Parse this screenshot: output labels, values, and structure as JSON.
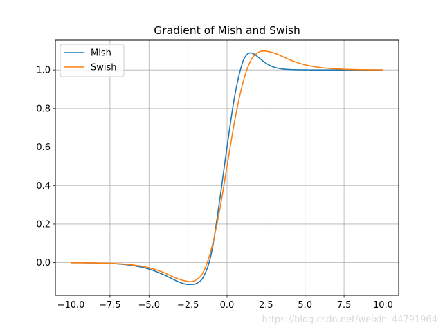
{
  "chart_data": {
    "type": "line",
    "title": "Gradient of Mish and Swish",
    "xlabel": "",
    "ylabel": "",
    "xlim": [
      -11.0,
      11.0
    ],
    "ylim": [
      -0.17,
      1.155
    ],
    "x_ticks": [
      -10.0,
      -7.5,
      -5.0,
      -2.5,
      0.0,
      2.5,
      5.0,
      7.5,
      10.0
    ],
    "x_tick_labels": [
      "−10.0",
      "−7.5",
      "−5.0",
      "−2.5",
      "0.0",
      "2.5",
      "5.0",
      "7.5",
      "10.0"
    ],
    "y_ticks": [
      0.0,
      0.2,
      0.4,
      0.6,
      0.8,
      1.0
    ],
    "y_tick_labels": [
      "0.0",
      "0.2",
      "0.4",
      "0.6",
      "0.8",
      "1.0"
    ],
    "grid": true,
    "legend_position": "top-left",
    "series": [
      {
        "name": "Mish",
        "color": "#1f77b4",
        "x": [
          -10.0,
          -9.0,
          -8.0,
          -7.0,
          -6.0,
          -5.0,
          -4.0,
          -3.5,
          -3.0,
          -2.5,
          -2.2,
          -2.0,
          -1.5,
          -1.0,
          -0.5,
          0.0,
          0.5,
          1.0,
          1.25,
          1.5,
          1.75,
          2.0,
          2.5,
          3.0,
          3.5,
          4.0,
          5.0,
          6.0,
          7.0,
          8.0,
          10.0
        ],
        "y": [
          -0.0004,
          -0.001,
          -0.0027,
          -0.0066,
          -0.0156,
          -0.0335,
          -0.0648,
          -0.0847,
          -0.1031,
          -0.1133,
          -0.1127,
          -0.1096,
          -0.0719,
          0.0491,
          0.3076,
          0.6,
          0.8683,
          1.0397,
          1.0774,
          1.0886,
          1.0816,
          1.0662,
          1.0347,
          1.0147,
          1.0058,
          1.0022,
          1.0003,
          1.0,
          1.0,
          1.0,
          1.0
        ]
      },
      {
        "name": "Swish",
        "color": "#ff7f0e",
        "x": [
          -10.0,
          -9.0,
          -8.0,
          -7.0,
          -6.0,
          -5.0,
          -4.0,
          -3.5,
          -3.0,
          -2.5,
          -2.4,
          -2.0,
          -1.5,
          -1.0,
          -0.5,
          0.0,
          0.5,
          1.0,
          1.5,
          2.0,
          2.4,
          2.5,
          3.0,
          3.5,
          4.0,
          5.0,
          6.0,
          7.0,
          8.0,
          9.0,
          10.0
        ],
        "y": [
          -0.0004,
          -0.001,
          -0.0024,
          -0.0055,
          -0.0123,
          -0.0266,
          -0.0534,
          -0.072,
          -0.0881,
          -0.0978,
          -0.0984,
          -0.0908,
          -0.0458,
          0.0723,
          0.26,
          0.5,
          0.74,
          0.9277,
          1.0458,
          1.0908,
          1.0984,
          1.0978,
          1.0881,
          1.072,
          1.0534,
          1.0266,
          1.0123,
          1.0055,
          1.0024,
          1.001,
          1.0004
        ]
      }
    ]
  },
  "watermark": "https://blog.csdn.net/weixin_44791964"
}
